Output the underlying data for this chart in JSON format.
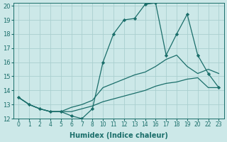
{
  "xlabel": "Humidex (Indice chaleur)",
  "background_color": "#cce8e8",
  "grid_color": "#aacfcf",
  "line_color": "#1a6e6a",
  "xlim": [
    -0.5,
    19.5
  ],
  "ylim": [
    12,
    20.2
  ],
  "yticks": [
    12,
    13,
    14,
    15,
    16,
    17,
    18,
    19,
    20
  ],
  "xtick_positions": [
    0,
    1,
    2,
    3,
    4,
    5,
    6,
    7,
    8,
    9,
    10,
    11,
    12,
    13,
    14,
    15,
    16,
    17,
    18,
    19
  ],
  "xtick_labels": [
    "0",
    "1",
    "2",
    "4",
    "5",
    "6",
    "7",
    "8",
    "10",
    "11",
    "12",
    "13",
    "14",
    "16",
    "17",
    "18",
    "19",
    "20",
    "22",
    "23"
  ],
  "series1_y": [
    13.5,
    13.0,
    12.7,
    12.5,
    12.5,
    12.2,
    12.0,
    12.7,
    16.0,
    18.0,
    19.0,
    19.1,
    20.1,
    20.2,
    16.5,
    18.0,
    19.4,
    16.5,
    15.2,
    14.2
  ],
  "series2_y": [
    13.5,
    13.0,
    12.7,
    12.5,
    12.5,
    12.8,
    13.0,
    13.3,
    14.2,
    14.5,
    14.8,
    15.1,
    15.3,
    15.7,
    16.2,
    16.5,
    15.7,
    15.2,
    15.5,
    15.2
  ],
  "series3_y": [
    13.5,
    13.0,
    12.7,
    12.5,
    12.5,
    12.5,
    12.7,
    12.9,
    13.2,
    13.4,
    13.6,
    13.8,
    14.0,
    14.3,
    14.5,
    14.6,
    14.8,
    14.9,
    14.2,
    14.2
  ]
}
